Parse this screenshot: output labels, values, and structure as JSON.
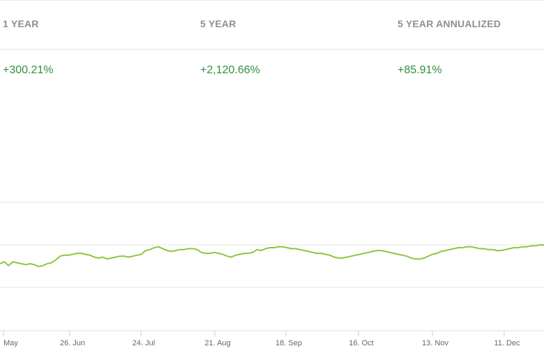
{
  "performance": {
    "headers": [
      "1 YEAR",
      "5 YEAR",
      "5 YEAR ANNUALIZED"
    ],
    "values": [
      "+300.21%",
      "+2,120.66%",
      "+85.91%"
    ]
  },
  "colors": {
    "gain": "#2f8f3e",
    "line": "#8cc63f",
    "grid": "#e6e6e6",
    "header_text": "#8f8f8f"
  },
  "chart_data": {
    "type": "line",
    "title": "",
    "xlabel": "",
    "ylabel": "",
    "x_tick_labels": [
      "May",
      "26. Jun",
      "24. Jul",
      "21. Aug",
      "18. Sep",
      "16. Oct",
      "13. Nov",
      "11. Dec"
    ],
    "y_tick_labels": [],
    "grid": true,
    "legend": "none",
    "series": [
      {
        "values": [
          20,
          22,
          18,
          22,
          21,
          20,
          19,
          20,
          19,
          17,
          18,
          20,
          21,
          24,
          28,
          29,
          29,
          30,
          31,
          31,
          30,
          29,
          27,
          26,
          27,
          25,
          26,
          27,
          28,
          28,
          27,
          28,
          29,
          30,
          34,
          35,
          37,
          38,
          36,
          34,
          33,
          34,
          35,
          35,
          36,
          36,
          35,
          32,
          31,
          31,
          32,
          31,
          30,
          28,
          27,
          29,
          30,
          31,
          31,
          32,
          35,
          34,
          36,
          37,
          37,
          38,
          38,
          37,
          36,
          36,
          35,
          34,
          33,
          32,
          31,
          31,
          30,
          29,
          27,
          26,
          26,
          27,
          28,
          29,
          30,
          31,
          32,
          33,
          34,
          34,
          33,
          32,
          31,
          30,
          29,
          28,
          26,
          25,
          25,
          26,
          28,
          30,
          31,
          33,
          34,
          35,
          36,
          37,
          37,
          38,
          38,
          37,
          36,
          36,
          35,
          35,
          34,
          34,
          35,
          36,
          37,
          37,
          38,
          38,
          39,
          39,
          40,
          40
        ]
      }
    ]
  }
}
